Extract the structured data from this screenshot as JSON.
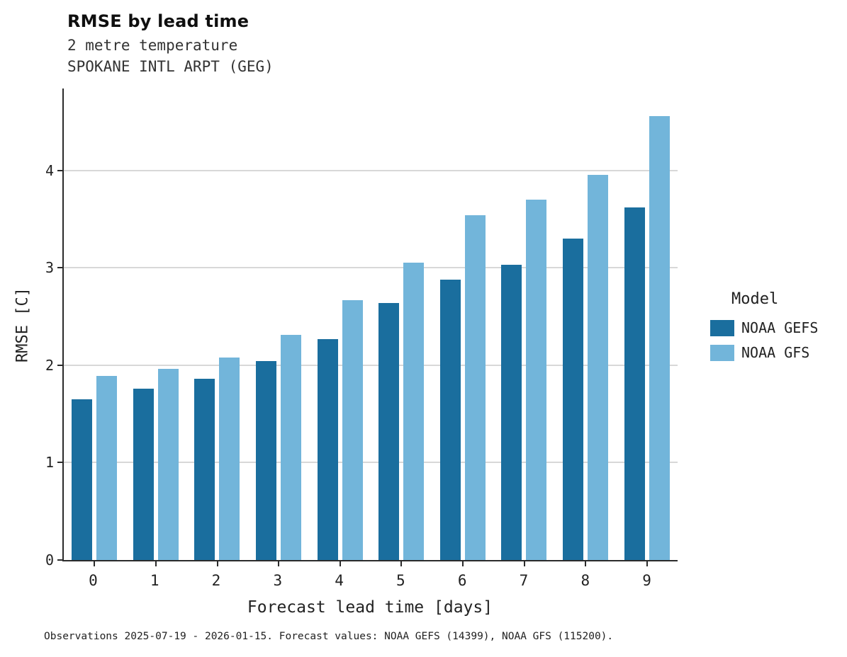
{
  "title": "RMSE by lead time",
  "subtitle_variable": "2 metre temperature",
  "subtitle_station": "SPOKANE INTL ARPT (GEG)",
  "footer": "Observations 2025-07-19 - 2026-01-15. Forecast values: NOAA GEFS (14399), NOAA GFS (115200).",
  "legend": {
    "title": "Model",
    "entries": [
      {
        "label": "NOAA GEFS",
        "color": "#1a6e9e"
      },
      {
        "label": "NOAA GFS",
        "color": "#72b5da"
      }
    ]
  },
  "chart_data": {
    "type": "bar",
    "title": "RMSE by lead time",
    "xlabel": "Forecast lead time [days]",
    "ylabel": "RMSE [C]",
    "categories": [
      "0",
      "1",
      "2",
      "3",
      "4",
      "5",
      "6",
      "7",
      "8",
      "9"
    ],
    "series": [
      {
        "name": "NOAA GEFS",
        "color": "#1a6e9e",
        "values": [
          1.65,
          1.76,
          1.86,
          2.04,
          2.27,
          2.64,
          2.88,
          3.03,
          3.3,
          3.62
        ]
      },
      {
        "name": "NOAA GFS",
        "color": "#72b5da",
        "values": [
          1.89,
          1.96,
          2.08,
          2.31,
          2.67,
          3.05,
          3.54,
          3.7,
          3.95,
          4.56
        ]
      }
    ],
    "ylim": [
      0,
      4.84
    ],
    "yticks": [
      0,
      1,
      2,
      3,
      4
    ],
    "grid": true,
    "legend_position": "right"
  }
}
